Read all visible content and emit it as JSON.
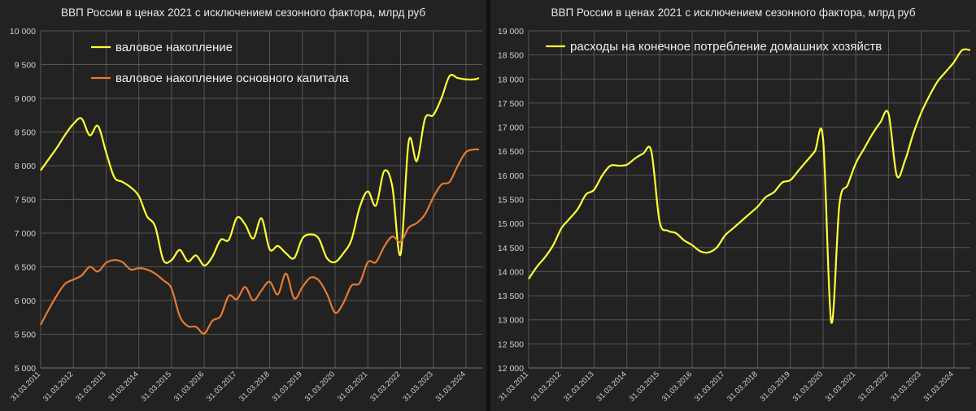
{
  "chart_data": [
    {
      "type": "line",
      "title": "ВВП России в ценах 2021 с исключением сезонного фактора, млрд руб",
      "ylim": [
        5000,
        10000
      ],
      "yticks": [
        "5 000",
        "5 500",
        "6 000",
        "6 500",
        "7 000",
        "7 500",
        "8 000",
        "8 500",
        "9 000",
        "9 500",
        "10 000"
      ],
      "ytick_values": [
        5000,
        5500,
        6000,
        6500,
        7000,
        7500,
        8000,
        8500,
        9000,
        9500,
        10000
      ],
      "xlim": [
        2011.0,
        2024.5
      ],
      "xticks": [
        "31.03.2011",
        "31.03.2012",
        "31.03.2013",
        "31.03.2014",
        "31.03.2015",
        "31.03.2016",
        "31.03.2017",
        "31.03.2018",
        "31.03.2019",
        "31.03.2020",
        "31.03.2021",
        "31.03.2022",
        "31.03.2023",
        "31.03.2024"
      ],
      "xtick_values": [
        2011,
        2012,
        2013,
        2014,
        2015,
        2016,
        2017,
        2018,
        2019,
        2020,
        2021,
        2022,
        2023,
        2024
      ],
      "legend_position": "top-left",
      "series": [
        {
          "name": "валовое накопление",
          "color": "#ffff33",
          "x": [
            2011.0,
            2011.25,
            2011.5,
            2011.75,
            2012.0,
            2012.25,
            2012.5,
            2012.75,
            2013.0,
            2013.25,
            2013.5,
            2013.75,
            2014.0,
            2014.25,
            2014.5,
            2014.75,
            2015.0,
            2015.25,
            2015.5,
            2015.75,
            2016.0,
            2016.25,
            2016.5,
            2016.75,
            2017.0,
            2017.25,
            2017.5,
            2017.75,
            2018.0,
            2018.25,
            2018.5,
            2018.75,
            2019.0,
            2019.25,
            2019.5,
            2019.75,
            2020.0,
            2020.25,
            2020.5,
            2020.75,
            2021.0,
            2021.25,
            2021.5,
            2021.75,
            2022.0,
            2022.25,
            2022.5,
            2022.75,
            2023.0,
            2023.25,
            2023.5,
            2023.75,
            2024.0,
            2024.25,
            2024.4
          ],
          "y": [
            7930,
            8100,
            8270,
            8460,
            8620,
            8700,
            8450,
            8590,
            8200,
            7830,
            7760,
            7680,
            7550,
            7250,
            7100,
            6600,
            6600,
            6750,
            6580,
            6670,
            6520,
            6650,
            6900,
            6900,
            7230,
            7130,
            6920,
            7220,
            6760,
            6810,
            6700,
            6630,
            6920,
            6980,
            6920,
            6630,
            6570,
            6700,
            6900,
            7380,
            7620,
            7410,
            7920,
            7690,
            6680,
            8360,
            8070,
            8700,
            8750,
            9000,
            9330,
            9300,
            9280,
            9280,
            9300
          ]
        },
        {
          "name": "валовое накопление основного капитала",
          "color": "#e67a30",
          "x": [
            2011.0,
            2011.25,
            2011.5,
            2011.75,
            2012.0,
            2012.25,
            2012.5,
            2012.75,
            2013.0,
            2013.25,
            2013.5,
            2013.75,
            2014.0,
            2014.25,
            2014.5,
            2014.75,
            2015.0,
            2015.25,
            2015.5,
            2015.75,
            2016.0,
            2016.25,
            2016.5,
            2016.75,
            2017.0,
            2017.25,
            2017.5,
            2017.75,
            2018.0,
            2018.25,
            2018.5,
            2018.75,
            2019.0,
            2019.25,
            2019.5,
            2019.75,
            2020.0,
            2020.25,
            2020.5,
            2020.75,
            2021.0,
            2021.25,
            2021.5,
            2021.75,
            2022.0,
            2022.25,
            2022.5,
            2022.75,
            2023.0,
            2023.25,
            2023.5,
            2023.75,
            2024.0,
            2024.25,
            2024.4
          ],
          "y": [
            5640,
            5870,
            6080,
            6250,
            6310,
            6370,
            6500,
            6430,
            6560,
            6600,
            6570,
            6460,
            6480,
            6460,
            6400,
            6300,
            6180,
            5770,
            5620,
            5610,
            5510,
            5700,
            5770,
            6070,
            6020,
            6200,
            6000,
            6150,
            6280,
            6090,
            6400,
            6030,
            6200,
            6340,
            6300,
            6100,
            5820,
            5960,
            6220,
            6260,
            6570,
            6570,
            6800,
            6950,
            6870,
            7080,
            7150,
            7280,
            7530,
            7720,
            7760,
            8000,
            8200,
            8240,
            8240
          ]
        }
      ]
    },
    {
      "type": "line",
      "title": "ВВП России в ценах 2021 с исключением сезонного фактора, млрд руб",
      "ylim": [
        12000,
        19000
      ],
      "yticks": [
        "12 000",
        "12 500",
        "13 000",
        "13 500",
        "14 000",
        "14 500",
        "15 000",
        "15 500",
        "16 000",
        "16 500",
        "17 000",
        "17 500",
        "18 000",
        "18 500",
        "19 000"
      ],
      "ytick_values": [
        12000,
        12500,
        13000,
        13500,
        14000,
        14500,
        15000,
        15500,
        16000,
        16500,
        17000,
        17500,
        18000,
        18500,
        19000
      ],
      "xlim": [
        2011.0,
        2024.5
      ],
      "xticks": [
        "31.03.2011",
        "31.03.2012",
        "31.03.2013",
        "31.03.2014",
        "31.03.2015",
        "31.03.2016",
        "31.03.2017",
        "31.03.2018",
        "31.03.2019",
        "31.03.2020",
        "31.03.2021",
        "31.03.2022",
        "31.03.2023",
        "31.03.2024"
      ],
      "xtick_values": [
        2011,
        2012,
        2013,
        2014,
        2015,
        2016,
        2017,
        2018,
        2019,
        2020,
        2021,
        2022,
        2023,
        2024
      ],
      "legend_position": "top-left",
      "series": [
        {
          "name": "расходы на конечное потребление домашних хозяйств",
          "color": "#ffff33",
          "x": [
            2011.0,
            2011.25,
            2011.5,
            2011.75,
            2012.0,
            2012.25,
            2012.5,
            2012.75,
            2013.0,
            2013.25,
            2013.5,
            2013.75,
            2014.0,
            2014.25,
            2014.5,
            2014.75,
            2015.0,
            2015.25,
            2015.5,
            2015.75,
            2016.0,
            2016.25,
            2016.5,
            2016.75,
            2017.0,
            2017.25,
            2017.5,
            2017.75,
            2018.0,
            2018.25,
            2018.5,
            2018.75,
            2019.0,
            2019.25,
            2019.5,
            2019.75,
            2020.0,
            2020.25,
            2020.5,
            2020.75,
            2021.0,
            2021.25,
            2021.5,
            2021.75,
            2022.0,
            2022.25,
            2022.5,
            2022.75,
            2023.0,
            2023.25,
            2023.5,
            2023.75,
            2024.0,
            2024.25,
            2024.5
          ],
          "y": [
            13850,
            14100,
            14300,
            14550,
            14900,
            15100,
            15300,
            15600,
            15700,
            16000,
            16200,
            16200,
            16220,
            16350,
            16450,
            16500,
            15050,
            14850,
            14800,
            14650,
            14550,
            14420,
            14400,
            14500,
            14750,
            14900,
            15050,
            15200,
            15350,
            15550,
            15650,
            15850,
            15900,
            16100,
            16300,
            16500,
            16750,
            12950,
            15400,
            15800,
            16250,
            16550,
            16850,
            17100,
            17280,
            16000,
            16300,
            16850,
            17300,
            17650,
            17950,
            18150,
            18350,
            18600,
            18600
          ]
        }
      ]
    }
  ]
}
